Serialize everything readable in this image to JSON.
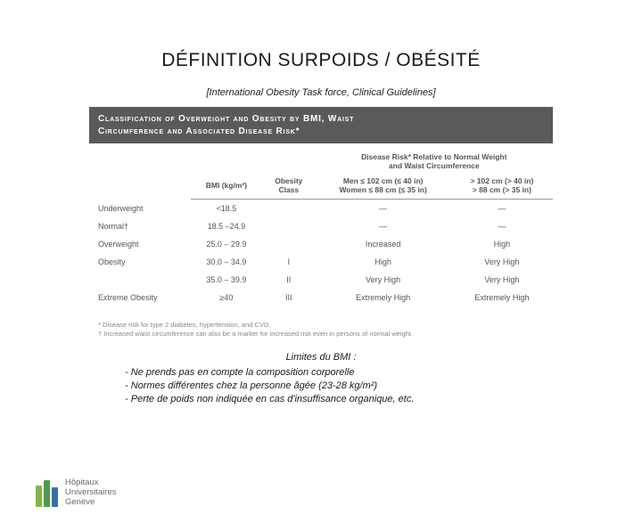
{
  "title": "DÉFINITION SURPOIDS / OBÉSITÉ",
  "subtitle": "[International Obesity Task force, Clinical Guidelines]",
  "table": {
    "header_line1": "Classification of Overweight and Obesity by BMI, Waist",
    "header_line2": "Circumference and Associated Disease Risk*",
    "risk_header_line1": "Disease Risk* Relative to Normal Weight",
    "risk_header_line2": "and Waist Circumference",
    "col_bmi": "BMI (kg/m²)",
    "col_class": "Obesity\nClass",
    "col_men1": "Men ≤ 102 cm (≤ 40 in)",
    "col_women1": "Women ≤ 88 cm (≤ 35 in)",
    "col_men2": "> 102 cm (> 40 in)",
    "col_women2": "> 88 cm (> 35 in)",
    "rows": [
      {
        "cat": "Underweight",
        "bmi": "<18.5",
        "cls": "",
        "r1": "—",
        "r2": "—"
      },
      {
        "cat": "Normal†",
        "bmi": "18.5 –24.9",
        "cls": "",
        "r1": "—",
        "r2": "—"
      },
      {
        "cat": "Overweight",
        "bmi": "25.0 – 29.9",
        "cls": "",
        "r1": "Increased",
        "r2": "High"
      },
      {
        "cat": "Obesity",
        "bmi": "30.0 – 34.9",
        "cls": "I",
        "r1": "High",
        "r2": "Very High"
      },
      {
        "cat": "",
        "bmi": "35.0 – 39.9",
        "cls": "II",
        "r1": "Very High",
        "r2": "Very High"
      },
      {
        "cat": "Extreme Obesity",
        "bmi": "≥40",
        "cls": "III",
        "r1": "Extremely High",
        "r2": "Extremely High"
      }
    ],
    "footnote1": "* Disease risk for type 2 diabetes, hypertension, and CVD.",
    "footnote2": "† Increased waist circumference can also be a marker for increased risk even in persons of normal weight."
  },
  "limits": {
    "title": "Limites du BMI :",
    "items": [
      "Ne prends pas en compte la composition corporelle",
      "Normes différentes chez la personne âgée (23-28 kg/m²)",
      " Perte de poids non indiquée en cas d'insuffisance organique, etc."
    ]
  },
  "logo": {
    "line1": "Hôpitaux",
    "line2": "Universitaires",
    "line3": "Genève"
  }
}
